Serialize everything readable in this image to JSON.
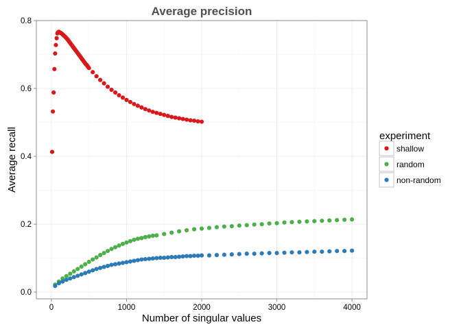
{
  "chart_data": {
    "type": "scatter",
    "title": "Average precision",
    "xlabel": "Number of singular values",
    "ylabel": "Average recall",
    "xlim": [
      -200,
      4200
    ],
    "ylim": [
      -0.02,
      0.8
    ],
    "x_ticks": [
      0,
      1000,
      2000,
      3000,
      4000
    ],
    "x_tick_labels": [
      "0",
      "1000",
      "2000",
      "3000",
      "4000"
    ],
    "y_ticks": [
      0.0,
      0.2,
      0.4,
      0.6,
      0.8
    ],
    "y_tick_labels": [
      "0.0",
      "0.2",
      "0.4",
      "0.6",
      "0.8"
    ],
    "grid": true,
    "legend": {
      "title": "experiment",
      "position": "right"
    },
    "series": [
      {
        "name": "shallow",
        "color": "#D7191C",
        "x": [
          10,
          20,
          30,
          40,
          50,
          60,
          70,
          80,
          90,
          100,
          110,
          120,
          130,
          140,
          150,
          160,
          170,
          180,
          190,
          200,
          210,
          220,
          230,
          240,
          250,
          260,
          270,
          280,
          290,
          300,
          310,
          320,
          330,
          340,
          350,
          360,
          370,
          380,
          390,
          400,
          410,
          420,
          430,
          440,
          450,
          460,
          470,
          480,
          490,
          500,
          550,
          600,
          650,
          700,
          750,
          800,
          850,
          900,
          950,
          1000,
          1050,
          1100,
          1150,
          1200,
          1250,
          1300,
          1350,
          1400,
          1450,
          1500,
          1550,
          1600,
          1650,
          1700,
          1750,
          1800,
          1850,
          1900,
          1950,
          2000
        ],
        "y": [
          0.413,
          0.532,
          0.588,
          0.657,
          0.703,
          0.728,
          0.748,
          0.762,
          0.766,
          0.767,
          0.765,
          0.764,
          0.763,
          0.761,
          0.759,
          0.757,
          0.755,
          0.753,
          0.751,
          0.748,
          0.746,
          0.743,
          0.74,
          0.737,
          0.734,
          0.731,
          0.728,
          0.725,
          0.722,
          0.719,
          0.716,
          0.713,
          0.71,
          0.707,
          0.704,
          0.701,
          0.698,
          0.695,
          0.692,
          0.689,
          0.686,
          0.683,
          0.68,
          0.677,
          0.674,
          0.671,
          0.669,
          0.666,
          0.663,
          0.66,
          0.648,
          0.636,
          0.625,
          0.615,
          0.605,
          0.596,
          0.588,
          0.58,
          0.573,
          0.566,
          0.56,
          0.554,
          0.549,
          0.544,
          0.539,
          0.535,
          0.531,
          0.528,
          0.525,
          0.522,
          0.519,
          0.516,
          0.514,
          0.512,
          0.51,
          0.508,
          0.506,
          0.505,
          0.503,
          0.502
        ]
      },
      {
        "name": "random",
        "color": "#4DAF4A",
        "x": [
          50,
          100,
          150,
          200,
          250,
          300,
          350,
          400,
          450,
          500,
          550,
          600,
          650,
          700,
          750,
          800,
          850,
          900,
          950,
          1000,
          1050,
          1100,
          1150,
          1200,
          1250,
          1300,
          1350,
          1400,
          1500,
          1600,
          1700,
          1800,
          1900,
          2000,
          2100,
          2200,
          2300,
          2400,
          2500,
          2600,
          2700,
          2800,
          2900,
          3000,
          3100,
          3200,
          3300,
          3400,
          3500,
          3600,
          3700,
          3800,
          3900,
          4000
        ],
        "y": [
          0.022,
          0.031,
          0.04,
          0.047,
          0.054,
          0.061,
          0.068,
          0.075,
          0.082,
          0.089,
          0.096,
          0.102,
          0.109,
          0.115,
          0.121,
          0.127,
          0.132,
          0.137,
          0.142,
          0.146,
          0.15,
          0.154,
          0.157,
          0.159,
          0.162,
          0.164,
          0.166,
          0.167,
          0.171,
          0.175,
          0.179,
          0.182,
          0.185,
          0.187,
          0.189,
          0.191,
          0.193,
          0.194,
          0.196,
          0.197,
          0.199,
          0.2,
          0.202,
          0.203,
          0.205,
          0.206,
          0.207,
          0.208,
          0.209,
          0.21,
          0.211,
          0.212,
          0.213,
          0.214
        ]
      },
      {
        "name": "non-random",
        "color": "#2C7BB6",
        "x": [
          50,
          100,
          150,
          200,
          250,
          300,
          350,
          400,
          450,
          500,
          550,
          600,
          650,
          700,
          750,
          800,
          850,
          900,
          950,
          1000,
          1050,
          1100,
          1150,
          1200,
          1250,
          1300,
          1350,
          1400,
          1450,
          1500,
          1550,
          1600,
          1650,
          1700,
          1750,
          1800,
          1850,
          1900,
          1950,
          2000,
          2100,
          2200,
          2300,
          2400,
          2500,
          2600,
          2700,
          2800,
          2900,
          3000,
          3100,
          3200,
          3300,
          3400,
          3500,
          3600,
          3700,
          3800,
          3900,
          4000
        ],
        "y": [
          0.018,
          0.026,
          0.031,
          0.036,
          0.04,
          0.044,
          0.048,
          0.052,
          0.056,
          0.06,
          0.064,
          0.068,
          0.071,
          0.074,
          0.077,
          0.08,
          0.082,
          0.084,
          0.086,
          0.088,
          0.09,
          0.092,
          0.094,
          0.096,
          0.097,
          0.098,
          0.099,
          0.1,
          0.101,
          0.101,
          0.102,
          0.103,
          0.103,
          0.104,
          0.105,
          0.106,
          0.106,
          0.107,
          0.107,
          0.108,
          0.108,
          0.109,
          0.11,
          0.111,
          0.112,
          0.113,
          0.113,
          0.114,
          0.115,
          0.115,
          0.116,
          0.117,
          0.117,
          0.118,
          0.119,
          0.119,
          0.12,
          0.121,
          0.121,
          0.122
        ]
      }
    ]
  }
}
